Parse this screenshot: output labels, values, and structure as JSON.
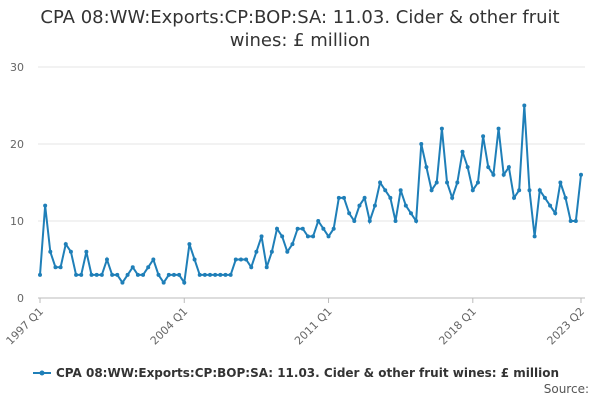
{
  "chart_data": {
    "type": "line",
    "title": "CPA 08:WW:Exports:CP:BOP:SA: 11.03. Cider & other fruit wines: £ million",
    "source": "Source:",
    "categories": [
      "1997 Q1",
      null,
      null,
      null,
      null,
      null,
      null,
      null,
      null,
      null,
      null,
      null,
      null,
      null,
      null,
      null,
      null,
      null,
      null,
      null,
      null,
      null,
      null,
      null,
      null,
      null,
      null,
      null,
      "2004 Q1",
      null,
      null,
      null,
      null,
      null,
      null,
      null,
      null,
      null,
      null,
      null,
      null,
      null,
      null,
      null,
      null,
      null,
      null,
      null,
      null,
      null,
      null,
      null,
      null,
      null,
      null,
      null,
      "2011 Q1",
      null,
      null,
      null,
      null,
      null,
      null,
      null,
      null,
      null,
      null,
      null,
      null,
      null,
      null,
      null,
      null,
      null,
      null,
      null,
      null,
      null,
      null,
      null,
      null,
      null,
      null,
      null,
      "2018 Q1",
      null,
      null,
      null,
      null,
      null,
      null,
      null,
      null,
      null,
      null,
      null,
      null,
      null,
      null,
      null,
      null,
      null,
      null,
      null,
      null,
      "2023 Q2"
    ],
    "series": [
      {
        "name": "CPA 08:WW:Exports:CP:BOP:SA: 11.03. Cider & other fruit wines: £ million",
        "color": "#1f7fb8",
        "values": [
          3,
          12,
          6,
          4,
          4,
          7,
          6,
          3,
          3,
          6,
          3,
          3,
          3,
          5,
          3,
          3,
          2,
          3,
          4,
          3,
          3,
          4,
          5,
          3,
          2,
          3,
          3,
          3,
          2,
          7,
          5,
          3,
          3,
          3,
          3,
          3,
          3,
          3,
          5,
          5,
          5,
          4,
          6,
          8,
          4,
          6,
          9,
          8,
          6,
          7,
          9,
          9,
          8,
          8,
          10,
          9,
          8,
          9,
          13,
          13,
          11,
          10,
          12,
          13,
          10,
          12,
          15,
          14,
          13,
          10,
          14,
          12,
          11,
          10,
          20,
          17,
          14,
          15,
          22,
          15,
          13,
          15,
          19,
          17,
          14,
          15,
          21,
          17,
          16,
          22,
          16,
          17,
          13,
          14,
          25,
          14,
          8,
          14,
          13,
          12,
          11,
          15,
          13,
          10,
          10,
          16
        ]
      }
    ],
    "ylim": [
      0,
      30
    ],
    "yticks": [
      0,
      10,
      20,
      30
    ],
    "grid": true
  }
}
